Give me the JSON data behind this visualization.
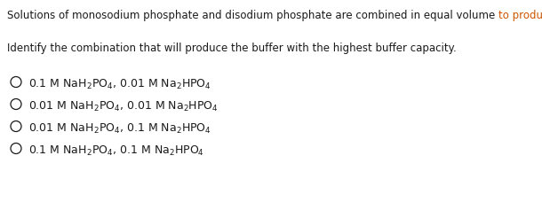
{
  "background_color": "#ffffff",
  "line1_black": "Solutions of monosodium phosphate and disodium phosphate are combined in equal volume ",
  "line1_orange": "to produce a buffer.",
  "line2": "Identify the combination that will produce the buffer with the highest buffer capacity.",
  "options": [
    "0.1 M NaH$_2$PO$_4$, 0.01 M Na$_2$HPO$_4$",
    "0.01 M NaH$_2$PO$_4$, 0.01 M Na$_2$HPO$_4$",
    "0.01 M NaH$_2$PO$_4$, 0.1 M Na$_2$HPO$_4$",
    "0.1 M NaH$_2$PO$_4$, 0.1 M Na$_2$HPO$_4$"
  ],
  "text_color_black": "#1a1a1a",
  "text_color_orange": "#cc5500",
  "font_size_line1": 8.5,
  "font_size_line2": 8.5,
  "font_size_options": 9.0,
  "circle_color": "#1a1a1a",
  "fig_width": 6.1,
  "fig_height": 2.37,
  "dpi": 100
}
